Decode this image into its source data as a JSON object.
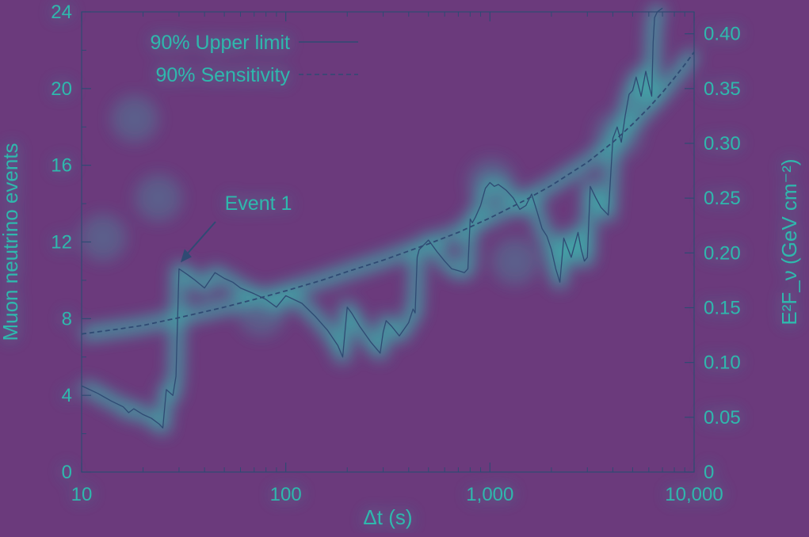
{
  "colors": {
    "background": "#6b3a7c",
    "glow": "#35c3b4",
    "ink": "#2f4a73",
    "label": "#2fb8ad"
  },
  "chart_data": {
    "type": "line",
    "title": "",
    "xlabel": "Δt (s)",
    "ylabel": "Muon neutrino events",
    "y2label": "E²F_ν (GeV cm⁻²)",
    "xscale": "log",
    "xlim": [
      10,
      10000
    ],
    "ylim": [
      0,
      24
    ],
    "y2lim": [
      0,
      0.42
    ],
    "grid": false,
    "legend_position": "top-left",
    "x_ticks": [
      {
        "value": 10,
        "label": "10"
      },
      {
        "value": 100,
        "label": "100"
      },
      {
        "value": 1000,
        "label": "1,000"
      },
      {
        "value": 10000,
        "label": "10,000"
      }
    ],
    "y_ticks": [
      {
        "value": 0,
        "label": "0"
      },
      {
        "value": 4,
        "label": "4"
      },
      {
        "value": 8,
        "label": "8"
      },
      {
        "value": 12,
        "label": "12"
      },
      {
        "value": 16,
        "label": "16"
      },
      {
        "value": 20,
        "label": "20"
      },
      {
        "value": 24,
        "label": "24"
      }
    ],
    "y2_ticks": [
      {
        "value": 0,
        "label": "0"
      },
      {
        "value": 0.05,
        "label": "0.05"
      },
      {
        "value": 0.1,
        "label": "0.10"
      },
      {
        "value": 0.15,
        "label": "0.15"
      },
      {
        "value": 0.2,
        "label": "0.20"
      },
      {
        "value": 0.25,
        "label": "0.25"
      },
      {
        "value": 0.3,
        "label": "0.30"
      },
      {
        "value": 0.35,
        "label": "0.35"
      },
      {
        "value": 0.4,
        "label": "0.40"
      }
    ],
    "series": [
      {
        "name": "90% Upper limit",
        "style": "solid",
        "x": [
          10,
          12,
          14,
          16,
          17,
          18,
          20,
          22,
          24,
          25,
          26,
          28,
          29,
          30,
          33,
          36,
          40,
          45,
          50,
          55,
          60,
          70,
          80,
          90,
          100,
          120,
          140,
          160,
          180,
          190,
          200,
          210,
          230,
          260,
          290,
          300,
          310,
          330,
          360,
          400,
          420,
          430,
          440,
          450,
          500,
          550,
          600,
          650,
          700,
          750,
          780,
          800,
          820,
          850,
          900,
          950,
          1000,
          1050,
          1100,
          1200,
          1300,
          1400,
          1500,
          1600,
          1700,
          1800,
          1900,
          2000,
          2100,
          2200,
          2300,
          2500,
          2700,
          2800,
          2900,
          3000,
          3100,
          3300,
          3500,
          3800,
          4000,
          4200,
          4400,
          4600,
          4800,
          5000,
          5200,
          5500,
          5800,
          6000,
          6200,
          6300,
          6400,
          6600,
          7000
        ],
        "y": [
          4.5,
          4.1,
          3.7,
          3.4,
          3.1,
          3.3,
          3.0,
          2.8,
          2.5,
          2.3,
          4.3,
          4.0,
          5.0,
          10.6,
          10.3,
          10.0,
          9.6,
          10.4,
          10.1,
          9.9,
          9.6,
          9.3,
          9.0,
          8.6,
          9.2,
          8.8,
          8.1,
          7.4,
          6.6,
          6.0,
          8.6,
          8.3,
          7.6,
          6.8,
          6.2,
          7.3,
          7.9,
          7.6,
          7.1,
          7.8,
          8.5,
          8.3,
          11.2,
          11.6,
          12.1,
          11.5,
          11.0,
          10.6,
          10.5,
          10.4,
          10.6,
          13.2,
          13.0,
          13.3,
          13.9,
          14.8,
          15.1,
          14.9,
          15.0,
          14.7,
          14.3,
          13.7,
          13.9,
          14.5,
          13.6,
          12.7,
          12.3,
          11.6,
          10.6,
          9.9,
          12.2,
          11.2,
          12.5,
          11.6,
          11.0,
          11.2,
          14.9,
          14.3,
          13.8,
          13.4,
          17.4,
          18.0,
          17.2,
          18.6,
          19.7,
          19.9,
          20.6,
          19.6,
          20.9,
          20.2,
          19.6,
          22.4,
          23.7,
          24.0,
          24.2
        ]
      },
      {
        "name": "90% Sensitivity",
        "style": "dashed",
        "x": [
          10,
          15,
          20,
          30,
          50,
          70,
          100,
          150,
          200,
          300,
          500,
          700,
          1000,
          1500,
          2000,
          3000,
          4000,
          5000,
          6000,
          7000,
          8000,
          9000,
          10000
        ],
        "y": [
          7.2,
          7.45,
          7.65,
          8.05,
          8.6,
          9.0,
          9.45,
          10.0,
          10.45,
          11.05,
          11.9,
          12.5,
          13.25,
          14.2,
          14.95,
          16.15,
          17.2,
          18.15,
          19.0,
          19.8,
          20.55,
          21.25,
          21.9
        ]
      }
    ],
    "annotations": [
      {
        "text": "Event 1",
        "x": 30,
        "y": 10.6
      }
    ]
  }
}
